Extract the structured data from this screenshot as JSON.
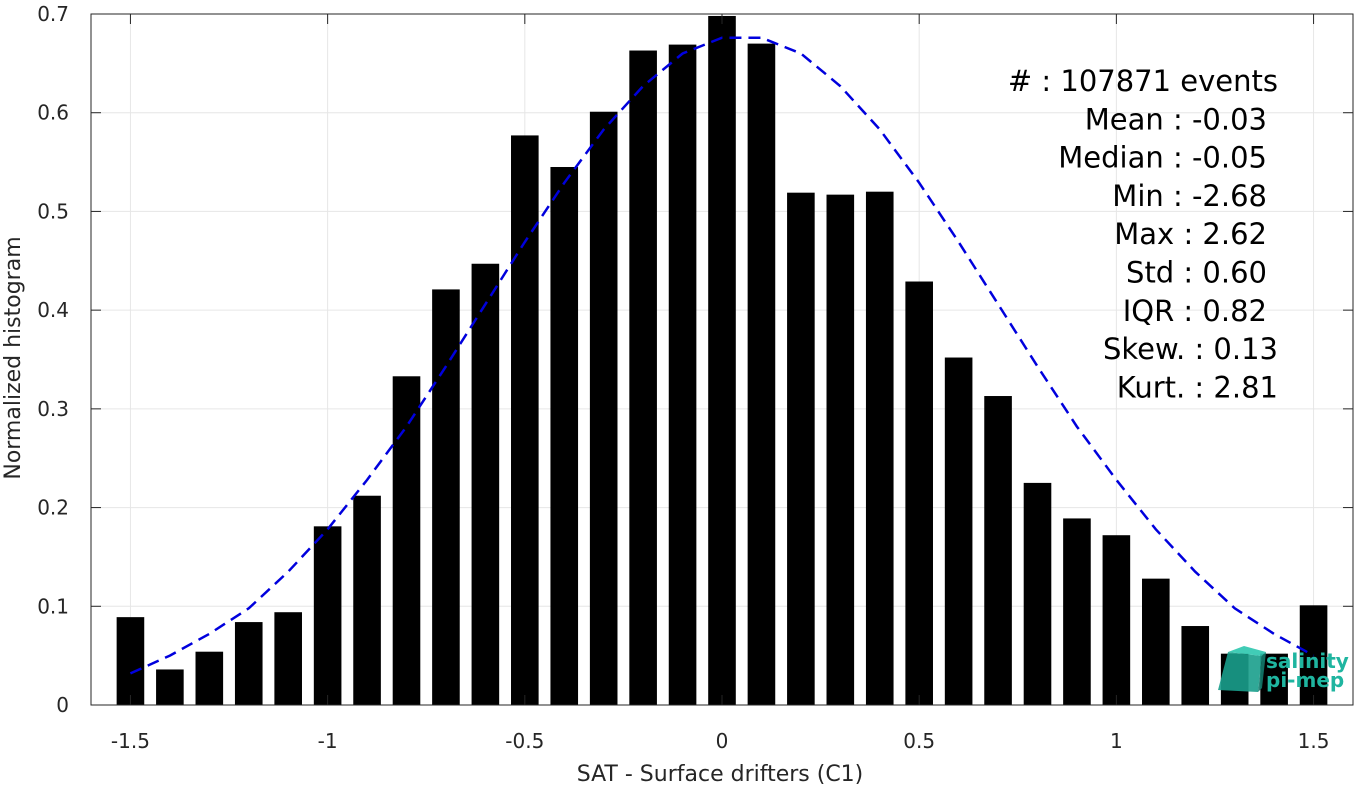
{
  "chart_data": {
    "type": "bar",
    "xlabel": "SAT - Surface drifters (C1)",
    "ylabel": "Normalized histogram",
    "xlim": [
      -1.6,
      1.6
    ],
    "ylim": [
      0,
      0.7
    ],
    "x_ticks": [
      -1.5,
      -1,
      -0.5,
      0,
      0.5,
      1,
      1.5
    ],
    "x_tick_labels": [
      "-1.5",
      "-1",
      "-0.5",
      "0",
      "0.5",
      "1",
      "1.5"
    ],
    "y_ticks": [
      0,
      0.1,
      0.2,
      0.3,
      0.4,
      0.5,
      0.6,
      0.7
    ],
    "y_tick_labels": [
      "0",
      "0.1",
      "0.2",
      "0.3",
      "0.4",
      "0.5",
      "0.6",
      "0.7"
    ],
    "grid": true,
    "bar_width": 0.07,
    "bar_color": "#000000",
    "bars": {
      "x": [
        -1.5,
        -1.4,
        -1.3,
        -1.2,
        -1.1,
        -1.0,
        -0.9,
        -0.8,
        -0.7,
        -0.6,
        -0.5,
        -0.4,
        -0.3,
        -0.2,
        -0.1,
        0.0,
        0.1,
        0.2,
        0.3,
        0.4,
        0.5,
        0.6,
        0.7,
        0.8,
        0.9,
        1.0,
        1.1,
        1.2,
        1.3,
        1.4,
        1.5
      ],
      "values": [
        0.089,
        0.036,
        0.054,
        0.084,
        0.094,
        0.181,
        0.212,
        0.333,
        0.421,
        0.447,
        0.577,
        0.545,
        0.601,
        0.663,
        0.669,
        0.698,
        0.67,
        0.519,
        0.517,
        0.52,
        0.429,
        0.352,
        0.313,
        0.225,
        0.189,
        0.172,
        0.128,
        0.08,
        0.052,
        0.052,
        0.101
      ]
    },
    "fit_curve": {
      "style": "dashed",
      "color": "#0000dd",
      "x": [
        -1.5,
        -1.4,
        -1.3,
        -1.2,
        -1.1,
        -1.0,
        -0.9,
        -0.8,
        -0.7,
        -0.6,
        -0.5,
        -0.4,
        -0.3,
        -0.2,
        -0.1,
        0.0,
        0.1,
        0.2,
        0.3,
        0.4,
        0.5,
        0.6,
        0.7,
        0.8,
        0.9,
        1.0,
        1.1,
        1.2,
        1.3,
        1.4,
        1.5
      ],
      "y": [
        0.032,
        0.05,
        0.072,
        0.098,
        0.135,
        0.178,
        0.228,
        0.282,
        0.343,
        0.406,
        0.469,
        0.529,
        0.583,
        0.627,
        0.66,
        0.676,
        0.676,
        0.66,
        0.627,
        0.583,
        0.529,
        0.469,
        0.406,
        0.343,
        0.282,
        0.228,
        0.178,
        0.135,
        0.098,
        0.072,
        0.05
      ]
    },
    "legend": "none"
  },
  "stats": [
    {
      "label": "#",
      "value": "107871 events",
      "text": "#  : 107871 events"
    },
    {
      "label": "Mean",
      "value": "-0.03",
      "text": "Mean : -0.03"
    },
    {
      "label": "Median",
      "value": "-0.05",
      "text": "Median : -0.05"
    },
    {
      "label": "Min",
      "value": "-2.68",
      "text": "Min : -2.68"
    },
    {
      "label": "Max",
      "value": "2.62",
      "text": "Max : 2.62"
    },
    {
      "label": "Std",
      "value": "0.60",
      "text": "Std : 0.60"
    },
    {
      "label": "IQR",
      "value": "0.82",
      "text": "IQR : 0.82"
    },
    {
      "label": "Skew.",
      "value": "0.13",
      "text": "Skew. : 0.13"
    },
    {
      "label": "Kurt.",
      "value": "2.81",
      "text": "Kurt. : 2.81"
    }
  ],
  "logo": {
    "line1": "salinity",
    "line2": "pi-mep",
    "color": "#1fb5a0"
  }
}
